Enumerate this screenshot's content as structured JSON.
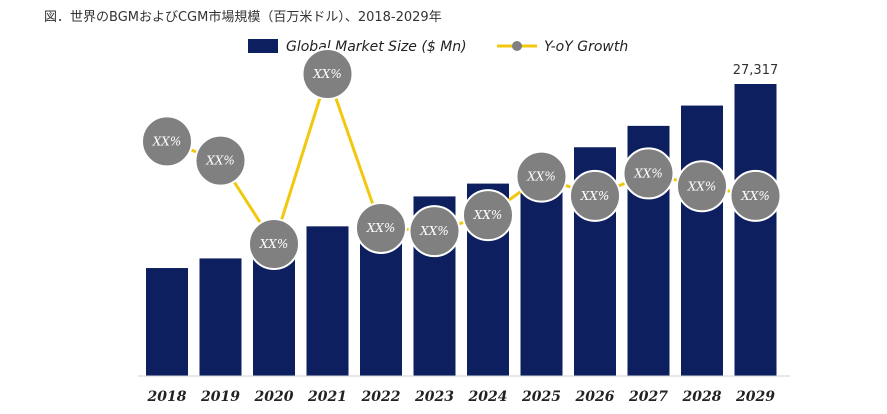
{
  "title": "図．世界のBGMおよびCGM市場規模（百万米ドル）、2018-2029年",
  "colors": {
    "bar": "#0d1f5f",
    "line": "#f2c80f",
    "bubble": "#808080",
    "bubble_stroke": "#ffffff"
  },
  "chart_data": {
    "type": "bar",
    "categories": [
      "2018",
      "2019",
      "2020",
      "2021",
      "2022",
      "2023",
      "2024",
      "2025",
      "2026",
      "2027",
      "2028",
      "2029"
    ],
    "series": [
      {
        "name": "Global Market Size ($ Mn)",
        "type": "bar",
        "values": [
          10100,
          11000,
          12700,
          14000,
          15300,
          16800,
          18000,
          19600,
          21400,
          23400,
          25300,
          27317
        ]
      },
      {
        "name": "Y-oY Growth",
        "type": "line",
        "labels": [
          "XX%",
          "XX%",
          "XX%",
          "XX%",
          "XX%",
          "XX%",
          "XX%",
          "XX%",
          "XX%",
          "XX%",
          "XX%",
          "XX%"
        ],
        "relative_level": [
          0.74,
          0.68,
          0.42,
          0.95,
          0.47,
          0.46,
          0.51,
          0.63,
          0.57,
          0.64,
          0.6,
          0.57
        ]
      }
    ],
    "data_labels": [
      {
        "category": "2029",
        "text": "27,317"
      }
    ],
    "legend": {
      "position": "top",
      "entries": [
        "Global Market Size ($ Mn)",
        "Y-oY Growth"
      ]
    },
    "ylim": [
      0,
      28000
    ],
    "grid": false
  }
}
